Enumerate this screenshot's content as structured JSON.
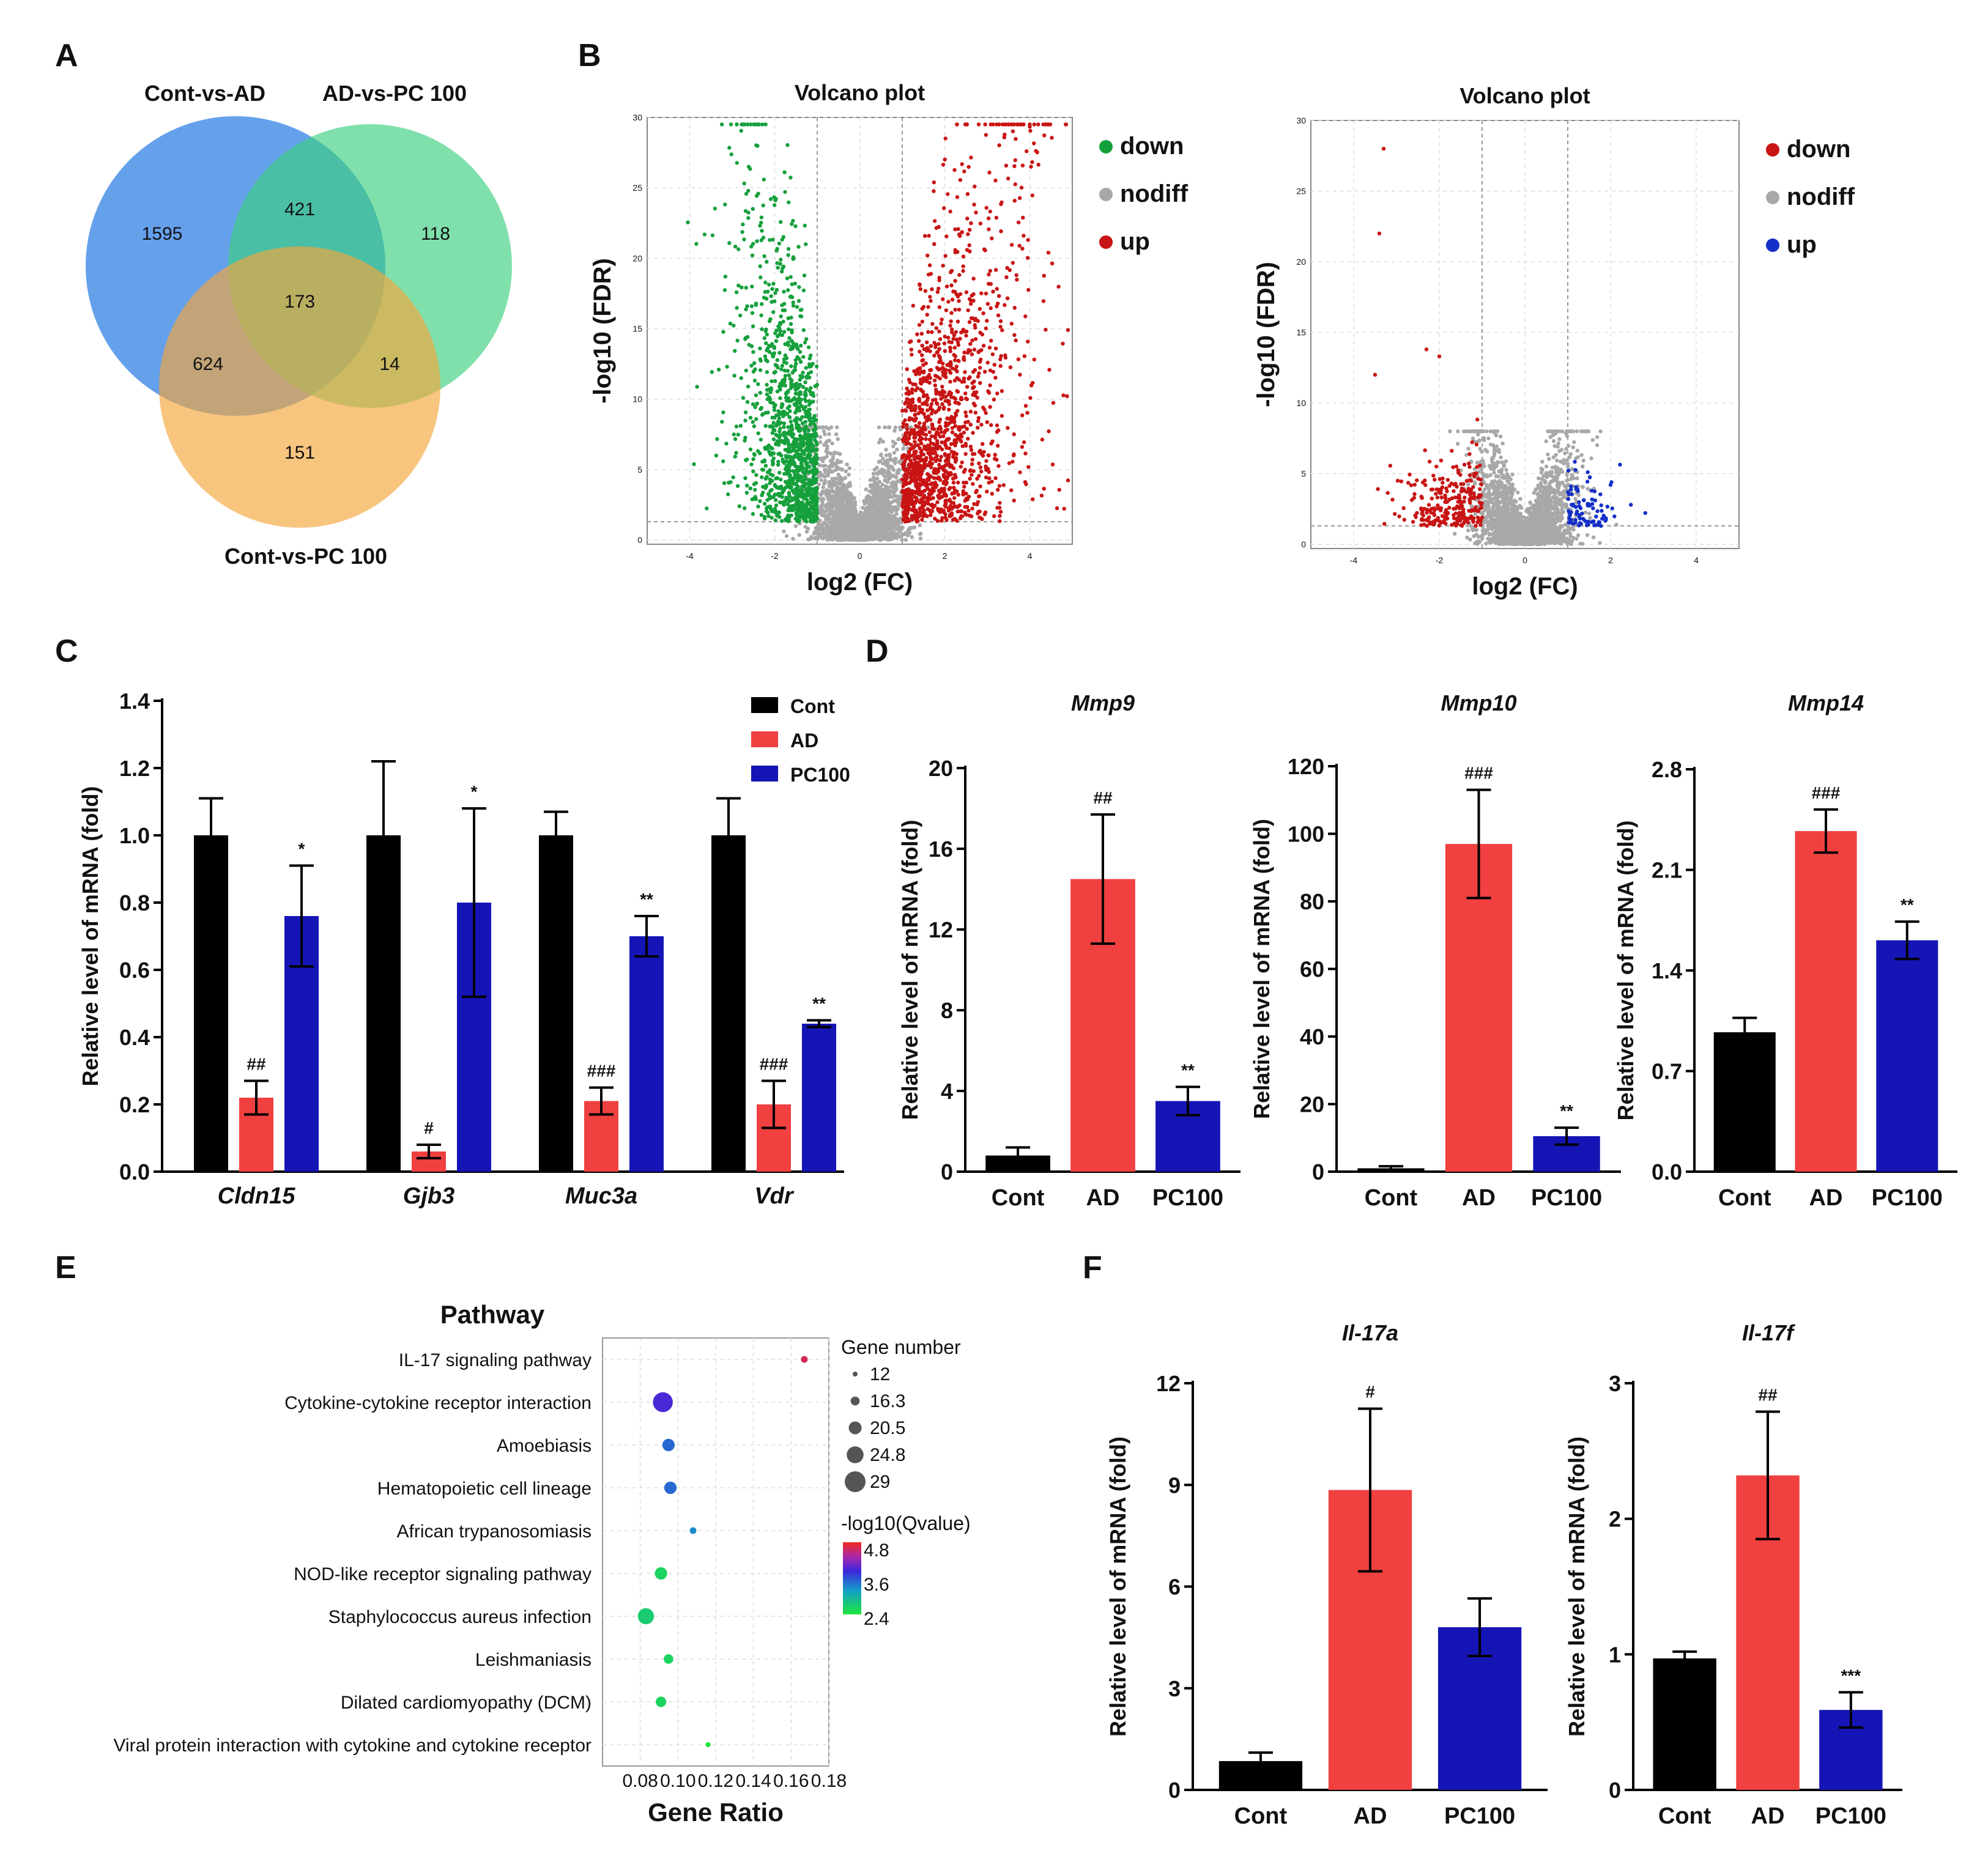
{
  "panel_labels": {
    "A": "A",
    "B": "B",
    "C": "C",
    "D": "D",
    "E": "E",
    "F": "F"
  },
  "colors": {
    "black": "#000000",
    "red": "#f04040",
    "blue": "#1515b5",
    "venn_blue": "#4a8fe8",
    "venn_green": "#3ccf80",
    "venn_orange": "#f5a63a",
    "volcano_green": "#16a03c",
    "volcano_red": "#c81414",
    "volcano_blue": "#1530c8",
    "volcano_gray": "#a8a8a8"
  },
  "venn": {
    "sets": [
      "Cont-vs-AD",
      "AD-vs-PC 100",
      "Cont-vs-PC 100"
    ],
    "regions": [
      {
        "label": "Cont-vs-AD only",
        "value": "1595"
      },
      {
        "label": "Cont-vs-AD ∩ AD-vs-PC 100",
        "value": "421"
      },
      {
        "label": "AD-vs-PC 100 only",
        "value": "118"
      },
      {
        "label": "all three",
        "value": "173"
      },
      {
        "label": "Cont-vs-AD ∩ Cont-vs-PC 100",
        "value": "624"
      },
      {
        "label": "AD-vs-PC 100 ∩ Cont-vs-PC 100",
        "value": "14"
      },
      {
        "label": "Cont-vs-PC 100 only",
        "value": "151"
      }
    ]
  },
  "volcano": [
    {
      "title": "Volcano plot",
      "xlabel": "log2 (FC)",
      "ylabel": "-log10 (FDR)",
      "xticks": [
        "-4",
        "-2",
        "0",
        "2",
        "4"
      ],
      "yticks": [
        "0",
        "5",
        "10",
        "15",
        "20",
        "25",
        "30"
      ],
      "legend": [
        "down",
        "nodiff",
        "up"
      ],
      "colors": [
        "#16a03c",
        "#a8a8a8",
        "#c81414"
      ]
    },
    {
      "title": "Volcano plot",
      "xlabel": "log2 (FC)",
      "ylabel": "-log10 (FDR)",
      "xticks": [
        "-4",
        "-2",
        "0",
        "2",
        "4"
      ],
      "yticks": [
        "0",
        "5",
        "10",
        "15",
        "20",
        "25",
        "30"
      ],
      "legend": [
        "down",
        "nodiff",
        "up"
      ],
      "colors": [
        "#c81414",
        "#a8a8a8",
        "#1530c8"
      ]
    }
  ],
  "chart_data": [
    {
      "id": "C",
      "type": "bar",
      "categories": [
        "Cldn15",
        "Gjb3",
        "Muc3a",
        "Vdr"
      ],
      "ylabel": "Relative level of mRNA (fold)",
      "ylim": [
        0,
        1.4
      ],
      "yticks": [
        "0.0",
        "0.2",
        "0.4",
        "0.6",
        "0.8",
        "1.0",
        "1.2",
        "1.4"
      ],
      "legend": [
        "Cont",
        "AD",
        "PC100"
      ],
      "series": [
        {
          "name": "Cont",
          "values": [
            1.0,
            1.0,
            1.0,
            1.0
          ],
          "errors": [
            0.11,
            0.22,
            0.07,
            0.11
          ],
          "annotations": [
            "",
            "",
            "",
            ""
          ]
        },
        {
          "name": "AD",
          "values": [
            0.22,
            0.06,
            0.21,
            0.2
          ],
          "errors": [
            0.05,
            0.02,
            0.04,
            0.07
          ],
          "annotations": [
            "##",
            "#",
            "###",
            "###"
          ]
        },
        {
          "name": "PC100",
          "values": [
            0.76,
            0.8,
            0.7,
            0.44
          ],
          "errors": [
            0.15,
            0.28,
            0.06,
            0.01
          ],
          "annotations": [
            "*",
            "*",
            "**",
            "**"
          ]
        }
      ]
    },
    {
      "id": "D1",
      "type": "bar",
      "title": "Mmp9",
      "categories": [
        "Cont",
        "AD",
        "PC100"
      ],
      "ylabel": "Relative level of mRNA (fold)",
      "ylim": [
        0,
        20
      ],
      "yticks": [
        "0",
        "4",
        "8",
        "12",
        "16",
        "20"
      ],
      "values": [
        0.8,
        14.5,
        3.5
      ],
      "errors": [
        0.4,
        3.2,
        0.7
      ],
      "annotations": [
        "",
        "##",
        "**"
      ]
    },
    {
      "id": "D2",
      "type": "bar",
      "title": "Mmp10",
      "categories": [
        "Cont",
        "AD",
        "PC100"
      ],
      "ylabel": "Relative level of mRNA (fold)",
      "ylim": [
        0,
        120
      ],
      "yticks": [
        "0",
        "20",
        "40",
        "60",
        "80",
        "100",
        "120"
      ],
      "values": [
        1.0,
        97.0,
        10.5
      ],
      "errors": [
        0.6,
        16.0,
        2.5
      ],
      "annotations": [
        "",
        "###",
        "**"
      ]
    },
    {
      "id": "D3",
      "type": "bar",
      "title": "Mmp14",
      "categories": [
        "Cont",
        "AD",
        "PC100"
      ],
      "ylabel": "Relative level of mRNA (fold)",
      "ylim": [
        0,
        2.8
      ],
      "yticks": [
        "0.0",
        "0.7",
        "1.4",
        "2.1",
        "2.8"
      ],
      "values": [
        0.97,
        2.37,
        1.61
      ],
      "errors": [
        0.1,
        0.15,
        0.13
      ],
      "annotations": [
        "",
        "###",
        "**"
      ]
    },
    {
      "id": "E",
      "type": "scatter",
      "title": "Pathway",
      "xlabel": "Gene Ratio",
      "xlim": [
        0.06,
        0.18
      ],
      "xticks": [
        "0.08",
        "0.10",
        "0.12",
        "0.14",
        "0.16",
        "0.18"
      ],
      "categories": [
        "IL-17 signaling pathway",
        "Cytokine-cytokine receptor interaction",
        "Amoebiasis",
        "Hematopoietic cell lineage",
        "African trypanosomiasis",
        "NOD-like receptor signaling pathway",
        "Staphylococcus aureus infection",
        "Leishmaniasis",
        "Dilated cardiomyopathy (DCM)",
        "Viral protein interaction with cytokine and cytokine receptor"
      ],
      "gene_ratio": [
        0.167,
        0.092,
        0.095,
        0.096,
        0.108,
        0.091,
        0.083,
        0.095,
        0.091,
        0.116
      ],
      "gene_number": [
        14,
        28,
        20,
        20,
        14,
        20,
        24,
        17,
        18,
        12
      ],
      "neg_log10_q": [
        4.6,
        3.9,
        3.5,
        3.5,
        3.3,
        2.6,
        2.7,
        2.6,
        2.6,
        2.4
      ],
      "size_legend_title": "Gene number",
      "size_legend": [
        "12",
        "16.3",
        "20.5",
        "24.8",
        "29"
      ],
      "color_legend_title": "-log10(Qvalue)",
      "color_legend": [
        "4.8",
        "3.6",
        "2.4"
      ]
    },
    {
      "id": "F1",
      "type": "bar",
      "title": "Il-17a",
      "categories": [
        "Cont",
        "AD",
        "PC100"
      ],
      "ylabel": "Relative level of mRNA (fold)",
      "ylim": [
        0,
        12
      ],
      "yticks": [
        "0",
        "3",
        "6",
        "9",
        "12"
      ],
      "values": [
        0.85,
        8.85,
        4.8
      ],
      "errors": [
        0.25,
        2.4,
        0.85
      ],
      "annotations": [
        "",
        "#",
        ""
      ]
    },
    {
      "id": "F2",
      "type": "bar",
      "title": "Il-17f",
      "categories": [
        "Cont",
        "AD",
        "PC100"
      ],
      "ylabel": "Relative level of mRNA (fold)",
      "ylim": [
        0,
        3
      ],
      "yticks": [
        "0",
        "1",
        "2",
        "3"
      ],
      "values": [
        0.97,
        2.32,
        0.59
      ],
      "errors": [
        0.05,
        0.47,
        0.13
      ],
      "annotations": [
        "",
        "##",
        "***"
      ]
    }
  ]
}
